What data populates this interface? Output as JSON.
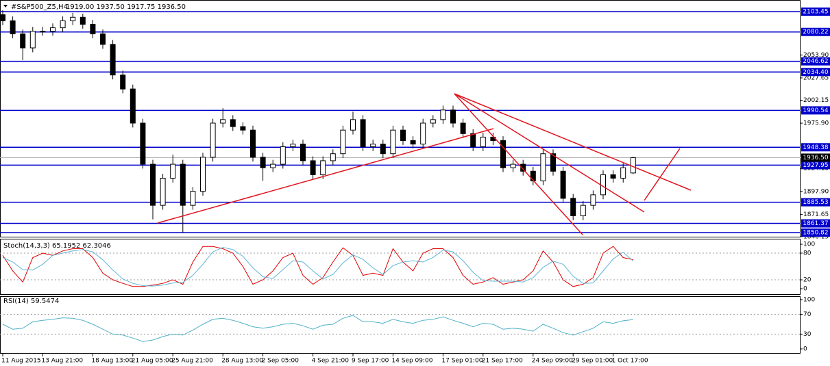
{
  "chart_data": [
    {
      "type": "candlestick",
      "title": "#S&P500_Z5,H4",
      "subtitle": "1919.00 1937.50 1917.75 1936.50",
      "categories": [
        "11 Aug 2015",
        null,
        null,
        null,
        "13 Aug 21:00",
        null,
        null,
        null,
        null,
        "18 Aug 13:00",
        null,
        null,
        null,
        "21 Aug 05:00",
        null,
        null,
        null,
        "25 Aug 21:00",
        null,
        null,
        null,
        null,
        "28 Aug 13:00",
        null,
        null,
        null,
        "2 Sep 05:00",
        null,
        null,
        null,
        null,
        "4 Sep 21:00",
        null,
        null,
        null,
        "9 Sep 17:00",
        null,
        null,
        null,
        "14 Sep 09:00",
        null,
        null,
        null,
        null,
        "17 Sep 01:00",
        null,
        null,
        null,
        "21 Sep 17:00",
        null,
        null,
        null,
        null,
        "24 Sep 09:00",
        null,
        null,
        null,
        "29 Sep 01:00",
        null,
        null,
        null,
        "1 Oct 17:00",
        null,
        null
      ],
      "open": [
        2100,
        2093,
        2078,
        2062,
        2081,
        2081,
        2085,
        2093,
        2097,
        2089,
        2078,
        2066,
        2031,
        2015,
        1976,
        1929,
        1882,
        1913,
        1929,
        1882,
        1898,
        1937,
        1976,
        1980,
        1972,
        1968,
        1937,
        1925,
        1929,
        1949,
        1952,
        1933,
        1917,
        1933,
        1941,
        1968,
        1980,
        1949,
        1952,
        1941,
        1968,
        1956,
        1952,
        1976,
        1980,
        1991,
        1976,
        1964,
        1949,
        1960,
        1956,
        1925,
        1929,
        1921,
        1910,
        1941,
        1921,
        1890,
        1870,
        1882,
        1894,
        1917,
        1913,
        1919
      ],
      "high": [
        2105,
        2098,
        2083,
        2086,
        2086,
        2090,
        2098,
        2102,
        2101,
        2094,
        2083,
        2071,
        2036,
        2020,
        1981,
        1934,
        1918,
        1940,
        1934,
        1903,
        1942,
        1981,
        1993,
        1985,
        1977,
        1973,
        1942,
        1934,
        1954,
        1957,
        1957,
        1938,
        1938,
        1946,
        1973,
        1989,
        1985,
        1957,
        1957,
        1973,
        1973,
        1961,
        1981,
        1985,
        1996,
        1996,
        1981,
        1969,
        1965,
        1965,
        1961,
        1934,
        1934,
        1926,
        1946,
        1946,
        1926,
        1895,
        1887,
        1899,
        1922,
        1922,
        1930,
        1937.5
      ],
      "low": [
        2088,
        2073,
        2048,
        2057,
        2076,
        2076,
        2080,
        2088,
        2084,
        2073,
        2061,
        2026,
        2010,
        1971,
        1924,
        1866,
        1877,
        1908,
        1851,
        1877,
        1893,
        1932,
        1971,
        1967,
        1963,
        1932,
        1910,
        1920,
        1924,
        1944,
        1928,
        1912,
        1912,
        1928,
        1936,
        1963,
        1944,
        1944,
        1936,
        1936,
        1951,
        1947,
        1947,
        1971,
        1975,
        1971,
        1959,
        1944,
        1944,
        1951,
        1920,
        1920,
        1916,
        1905,
        1905,
        1916,
        1885,
        1865,
        1865,
        1877,
        1889,
        1908,
        1908,
        1917.75
      ],
      "close": [
        2093,
        2078,
        2062,
        2081,
        2081,
        2085,
        2093,
        2097,
        2089,
        2078,
        2066,
        2031,
        2015,
        1976,
        1929,
        1882,
        1913,
        1929,
        1882,
        1898,
        1937,
        1976,
        1980,
        1972,
        1968,
        1937,
        1925,
        1929,
        1949,
        1952,
        1933,
        1917,
        1933,
        1941,
        1968,
        1980,
        1949,
        1952,
        1941,
        1968,
        1956,
        1952,
        1976,
        1980,
        1991,
        1976,
        1964,
        1949,
        1960,
        1956,
        1925,
        1929,
        1921,
        1910,
        1941,
        1921,
        1890,
        1870,
        1882,
        1894,
        1917,
        1913,
        1925,
        1936.5
      ],
      "up_color": "#ffffff",
      "down_color": "#000000",
      "ylim": [
        1845.35,
        2116.75
      ],
      "yticks": [
        {
          "value": 2053.9,
          "label": "2053.90"
        },
        2027.65,
        2002.15,
        {
          "value": 1975.9,
          "label": "1975.90"
        },
        1924.15,
        {
          "value": 1897.9,
          "label": "1897.90"
        },
        1871.65,
        1846.15
      ],
      "levels": [
        2103.45,
        2080.22,
        2046.62,
        {
          "value": 2034.4,
          "label": "2034.40"
        },
        1990.54,
        1948.38,
        1927.95,
        1885.53,
        1861.37,
        1850.82
      ],
      "level_style": "box",
      "level_color": "#0000cc",
      "current_price": {
        "value": 1936.5,
        "label": "1936.50"
      }
    },
    {
      "type": "line",
      "title": "Stoch(14,3,3) 65.1952 62.3046",
      "series": [
        {
          "color": "#e00000",
          "values": [
            75,
            40,
            15,
            70,
            80,
            75,
            85,
            90,
            90,
            70,
            35,
            20,
            12,
            5,
            5,
            8,
            12,
            20,
            10,
            60,
            95,
            95,
            90,
            80,
            50,
            10,
            20,
            40,
            70,
            80,
            30,
            10,
            25,
            60,
            92,
            75,
            30,
            35,
            30,
            90,
            60,
            40,
            80,
            90,
            90,
            70,
            30,
            10,
            15,
            25,
            10,
            15,
            20,
            40,
            85,
            60,
            20,
            5,
            10,
            25,
            80,
            95,
            70,
            65.1952
          ]
        },
        {
          "color": "#5fb4d4",
          "values": [
            70,
            60,
            43,
            42,
            55,
            75,
            80,
            85,
            88,
            83,
            65,
            42,
            22,
            12,
            7,
            6,
            8,
            13,
            14,
            30,
            55,
            83,
            93,
            88,
            73,
            47,
            27,
            23,
            43,
            63,
            60,
            40,
            22,
            32,
            58,
            76,
            66,
            47,
            32,
            52,
            60,
            63,
            60,
            70,
            87,
            83,
            63,
            37,
            18,
            17,
            17,
            17,
            15,
            25,
            48,
            62,
            55,
            28,
            12,
            13,
            40,
            67,
            82,
            62.3046
          ]
        }
      ],
      "ylim": [
        -13.8,
        112.3
      ],
      "yticks": [
        0,
        20,
        80,
        100
      ],
      "levels": [
        20,
        80
      ],
      "level_style": "dotted",
      "level_color": "#9a9a9a"
    },
    {
      "type": "line",
      "title": "RSI(14) 59.5474",
      "series": [
        {
          "color": "#4fb0c8",
          "values": [
            50,
            40,
            42,
            55,
            58,
            60,
            63,
            62,
            58,
            50,
            40,
            30,
            28,
            22,
            15,
            18,
            25,
            30,
            28,
            38,
            50,
            60,
            62,
            58,
            52,
            45,
            42,
            45,
            50,
            52,
            47,
            40,
            48,
            50,
            62,
            68,
            55,
            55,
            52,
            60,
            55,
            52,
            58,
            60,
            65,
            58,
            52,
            45,
            52,
            50,
            40,
            42,
            40,
            36,
            50,
            42,
            33,
            28,
            35,
            42,
            55,
            52,
            57,
            59.5474
          ]
        }
      ],
      "ylim": [
        -9.7,
        106.9
      ],
      "yticks": [
        0,
        30,
        70,
        100
      ],
      "levels": [
        30,
        70
      ],
      "level_style": "dotted",
      "level_color": "#9a9a9a"
    }
  ]
}
